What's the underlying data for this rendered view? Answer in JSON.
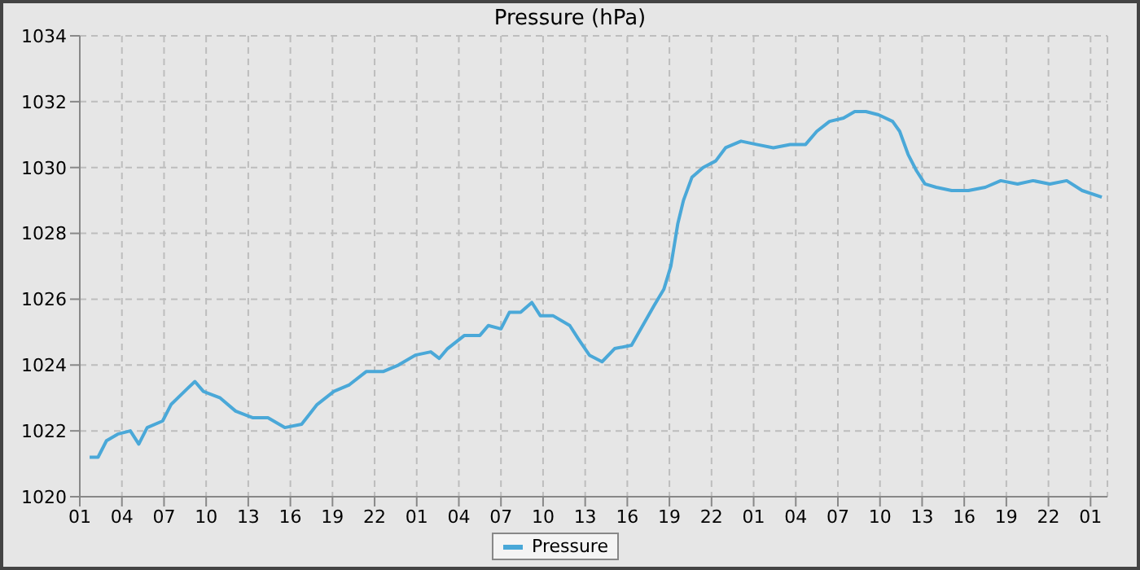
{
  "chart_data": {
    "type": "line",
    "title": "Pressure (hPa)",
    "x": [
      "--01-01T01:42",
      "--01-01T02:18",
      "--01-01T02:54",
      "--01-01T03:42",
      "--01-01T04:36",
      "--01-01T05:12",
      "--01-01T05:48",
      "--01-01T06:54",
      "--01-01T07:30",
      "--01-01T08:42",
      "--01-01T09:12",
      "--01-01T09:48",
      "--01-01T11:00",
      "--01-01T12:06",
      "--01-01T13:18",
      "--01-01T14:24",
      "--01-01T15:36",
      "--01-01T16:48",
      "--01-01T17:54",
      "--01-01T19:06",
      "--01-01T20:12",
      "--01-01T21:24",
      "--01-01T22:36",
      "--01-01T23:42",
      "--01-02T00:54",
      "--01-02T02:00",
      "--01-02T02:36",
      "--01-02T03:12",
      "--01-02T04:24",
      "--01-02T05:30",
      "--01-02T06:06",
      "--01-02T07:00",
      "--01-02T07:36",
      "--01-02T08:24",
      "--01-02T09:12",
      "--01-02T09:48",
      "--01-02T10:42",
      "--01-02T11:54",
      "--01-02T12:30",
      "--01-02T13:18",
      "--01-02T14:12",
      "--01-02T15:06",
      "--01-02T16:18",
      "--01-02T17:06",
      "--01-02T17:54",
      "--01-02T18:36",
      "--01-02T19:06",
      "--01-02T19:36",
      "--01-02T20:00",
      "--01-02T20:36",
      "--01-02T21:24",
      "--01-02T22:18",
      "--01-02T23:00",
      "--01-03T00:06",
      "--01-03T01:12",
      "--01-03T02:24",
      "--01-03T03:36",
      "--01-03T04:42",
      "--01-03T05:30",
      "--01-03T06:24",
      "--01-03T07:24",
      "--01-03T08:12",
      "--01-03T09:00",
      "--01-03T09:54",
      "--01-03T10:54",
      "--01-03T11:24",
      "--01-03T12:00",
      "--01-03T12:36",
      "--01-03T13:12",
      "--01-03T14:00",
      "--01-03T15:06",
      "--01-03T16:18",
      "--01-03T17:30",
      "--01-03T18:36",
      "--01-03T19:48",
      "--01-03T20:54",
      "--01-03T22:06",
      "--01-03T23:18",
      "--01-04T00:24",
      "--01-04T01:48"
    ],
    "series": [
      {
        "name": "Pressure",
        "color": "#4aa8d8",
        "values": [
          1021.2,
          1021.2,
          1021.7,
          1021.9,
          1022.0,
          1021.6,
          1022.1,
          1022.3,
          1022.8,
          1023.3,
          1023.5,
          1023.2,
          1023.0,
          1022.6,
          1022.4,
          1022.4,
          1022.1,
          1022.2,
          1022.8,
          1023.2,
          1023.4,
          1023.8,
          1023.8,
          1024.0,
          1024.3,
          1024.4,
          1024.2,
          1024.5,
          1024.9,
          1024.9,
          1025.2,
          1025.1,
          1025.6,
          1025.6,
          1025.9,
          1025.5,
          1025.5,
          1025.2,
          1024.8,
          1024.3,
          1024.1,
          1024.5,
          1024.6,
          1025.2,
          1025.8,
          1026.3,
          1027.0,
          1028.3,
          1029.0,
          1029.7,
          1030.0,
          1030.2,
          1030.6,
          1030.8,
          1030.7,
          1030.6,
          1030.7,
          1030.7,
          1031.1,
          1031.4,
          1031.5,
          1031.7,
          1031.7,
          1031.6,
          1031.4,
          1031.1,
          1030.4,
          1029.9,
          1029.5,
          1029.4,
          1029.3,
          1029.3,
          1029.4,
          1029.6,
          1029.5,
          1029.6,
          1029.5,
          1029.6,
          1029.3,
          1029.1
        ]
      }
    ],
    "xlim": [
      "--01-01T01:00",
      "--01-04T02:12"
    ],
    "xticks": [
      {
        "value": "--01-01T01:00",
        "label": "01"
      },
      {
        "value": "--01-01T04:00",
        "label": "04"
      },
      {
        "value": "--01-01T07:00",
        "label": "07"
      },
      {
        "value": "--01-01T10:00",
        "label": "10"
      },
      {
        "value": "--01-01T13:00",
        "label": "13"
      },
      {
        "value": "--01-01T16:00",
        "label": "16"
      },
      {
        "value": "--01-01T19:00",
        "label": "19"
      },
      {
        "value": "--01-01T22:00",
        "label": "22"
      },
      {
        "value": "--01-02T01:00",
        "label": "01"
      },
      {
        "value": "--01-02T04:00",
        "label": "04"
      },
      {
        "value": "--01-02T07:00",
        "label": "07"
      },
      {
        "value": "--01-02T10:00",
        "label": "10"
      },
      {
        "value": "--01-02T13:00",
        "label": "13"
      },
      {
        "value": "--01-02T16:00",
        "label": "16"
      },
      {
        "value": "--01-02T19:00",
        "label": "19"
      },
      {
        "value": "--01-02T22:00",
        "label": "22"
      },
      {
        "value": "--01-03T01:00",
        "label": "01"
      },
      {
        "value": "--01-03T04:00",
        "label": "04"
      },
      {
        "value": "--01-03T07:00",
        "label": "07"
      },
      {
        "value": "--01-03T10:00",
        "label": "10"
      },
      {
        "value": "--01-03T13:00",
        "label": "13"
      },
      {
        "value": "--01-03T16:00",
        "label": "16"
      },
      {
        "value": "--01-03T19:00",
        "label": "19"
      },
      {
        "value": "--01-03T22:00",
        "label": "22"
      },
      {
        "value": "--01-04T01:00",
        "label": "01"
      }
    ],
    "ylim": [
      1020,
      1034
    ],
    "yticks": [
      1020,
      1022,
      1024,
      1026,
      1028,
      1030,
      1032,
      1034
    ],
    "grid": true,
    "legend": "bottom",
    "marker": "none",
    "line_style": "solid"
  }
}
